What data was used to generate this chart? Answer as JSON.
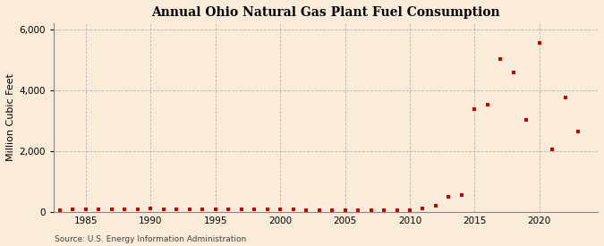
{
  "title": "Annual Ohio Natural Gas Plant Fuel Consumption",
  "ylabel": "Million Cubic Feet",
  "source": "Source: U.S. Energy Information Administration",
  "background_color": "#faecd8",
  "plot_bg_color": "#faecd8",
  "marker_color": "#cc0000",
  "grid_color": "#b0b0b0",
  "xlim": [
    1982.5,
    2024.5
  ],
  "ylim": [
    0,
    6200
  ],
  "yticks": [
    0,
    2000,
    4000,
    6000
  ],
  "ytick_labels": [
    "0",
    "2,000",
    "4,000",
    "6,000"
  ],
  "xticks": [
    1985,
    1990,
    1995,
    2000,
    2005,
    2010,
    2015,
    2020
  ],
  "years": [
    1983,
    1984,
    1985,
    1986,
    1987,
    1988,
    1989,
    1990,
    1991,
    1992,
    1993,
    1994,
    1995,
    1996,
    1997,
    1998,
    1999,
    2000,
    2001,
    2002,
    2003,
    2004,
    2005,
    2006,
    2007,
    2008,
    2009,
    2010,
    2011,
    2012,
    2013,
    2014,
    2015,
    2016,
    2017,
    2018,
    2019,
    2020,
    2021,
    2022,
    2023
  ],
  "values": [
    50,
    70,
    90,
    75,
    80,
    85,
    90,
    100,
    90,
    85,
    80,
    85,
    80,
    85,
    80,
    75,
    70,
    65,
    65,
    60,
    60,
    55,
    55,
    50,
    50,
    50,
    45,
    50,
    110,
    190,
    480,
    550,
    3380,
    3520,
    5020,
    4580,
    3040,
    5570,
    2040,
    3760,
    2630
  ]
}
